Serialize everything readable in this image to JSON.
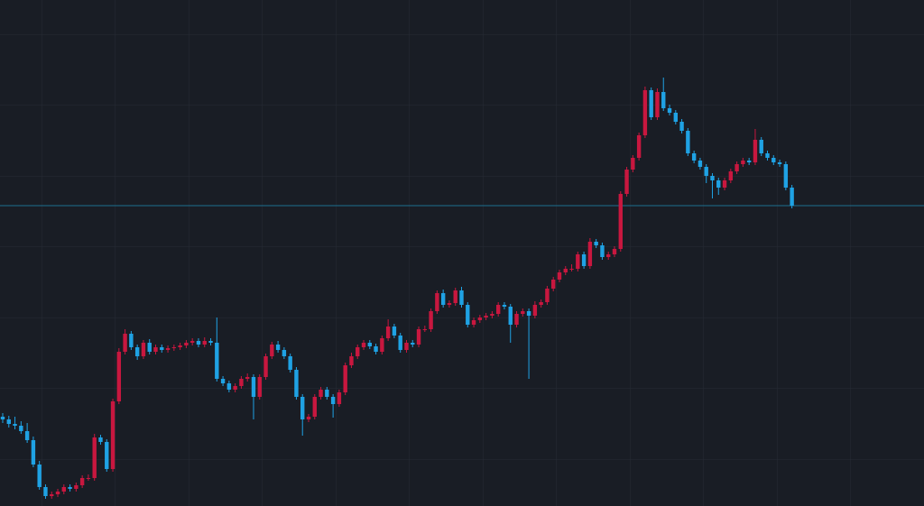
{
  "chart_data": {
    "type": "candlestick",
    "ylim": [
      0,
      561
    ],
    "up_color": "#c8173f",
    "down_color": "#1fa2e4",
    "last_price_line": true,
    "last_price_color": "#1d6f8f",
    "open": [
      99,
      96,
      91,
      89,
      83,
      73,
      46,
      21,
      11,
      13,
      16,
      21,
      19,
      23,
      31,
      31,
      76,
      71,
      41,
      116,
      171,
      191,
      176,
      166,
      181,
      171,
      176,
      173,
      175,
      176,
      178,
      181,
      183,
      179,
      183,
      181,
      141,
      136,
      129,
      133,
      141,
      143,
      121,
      143,
      166,
      179,
      173,
      166,
      151,
      121,
      96,
      99,
      121,
      129,
      121,
      113,
      126,
      156,
      166,
      176,
      181,
      177,
      171,
      186,
      199,
      189,
      173,
      181,
      179,
      196,
      196,
      216,
      236,
      223,
      225,
      239,
      223,
      201,
      206,
      209,
      211,
      213,
      223,
      221,
      201,
      213,
      216,
      211,
      223,
      226,
      241,
      251,
      259,
      263,
      263,
      279,
      266,
      293,
      289,
      276,
      279,
      285,
      346,
      373,
      386,
      411,
      461,
      431,
      459,
      441,
      436,
      426,
      416,
      391,
      383,
      376,
      366,
      361,
      353,
      361,
      371,
      379,
      383,
      381,
      406,
      391,
      386,
      381,
      379,
      353
    ],
    "high": [
      103,
      100,
      99,
      94,
      92,
      77,
      50,
      24,
      16,
      19,
      24,
      24,
      26,
      34,
      35,
      80,
      79,
      74,
      119,
      175,
      196,
      194,
      179,
      184,
      185,
      179,
      179,
      178,
      179,
      181,
      184,
      186,
      186,
      187,
      186,
      209,
      144,
      139,
      136,
      144,
      147,
      146,
      146,
      169,
      182,
      183,
      176,
      169,
      154,
      124,
      102,
      124,
      132,
      132,
      124,
      129,
      159,
      170,
      179,
      184,
      184,
      180,
      189,
      207,
      202,
      192,
      184,
      184,
      199,
      200,
      219,
      239,
      240,
      228,
      242,
      243,
      226,
      209,
      212,
      214,
      216,
      226,
      226,
      224,
      216,
      219,
      219,
      227,
      229,
      244,
      254,
      262,
      266,
      268,
      282,
      282,
      297,
      296,
      292,
      282,
      288,
      349,
      376,
      389,
      414,
      465,
      464,
      463,
      475,
      445,
      439,
      429,
      419,
      394,
      386,
      379,
      369,
      364,
      364,
      374,
      382,
      386,
      386,
      418,
      409,
      394,
      389,
      384,
      382,
      356
    ],
    "low": [
      92,
      87,
      85,
      80,
      70,
      43,
      18,
      8,
      8,
      10,
      13,
      16,
      16,
      20,
      28,
      28,
      68,
      38,
      38,
      113,
      168,
      173,
      162,
      163,
      168,
      168,
      170,
      170,
      172,
      173,
      175,
      178,
      176,
      176,
      178,
      138,
      133,
      126,
      126,
      130,
      138,
      96,
      118,
      140,
      163,
      170,
      163,
      148,
      118,
      78,
      93,
      96,
      118,
      118,
      98,
      110,
      123,
      153,
      163,
      173,
      174,
      168,
      168,
      183,
      186,
      170,
      170,
      176,
      176,
      193,
      193,
      213,
      220,
      220,
      222,
      220,
      198,
      198,
      203,
      206,
      208,
      210,
      218,
      181,
      198,
      210,
      141,
      208,
      220,
      223,
      238,
      248,
      256,
      260,
      260,
      263,
      263,
      286,
      273,
      273,
      276,
      282,
      343,
      370,
      383,
      408,
      428,
      428,
      438,
      433,
      423,
      413,
      388,
      380,
      373,
      358,
      341,
      345,
      350,
      358,
      368,
      376,
      378,
      378,
      388,
      383,
      378,
      376,
      350,
      330
    ],
    "close": [
      96,
      91,
      89,
      83,
      73,
      46,
      21,
      11,
      13,
      16,
      21,
      19,
      23,
      31,
      31,
      76,
      71,
      41,
      116,
      171,
      191,
      176,
      166,
      181,
      171,
      176,
      173,
      175,
      176,
      178,
      181,
      183,
      179,
      183,
      181,
      141,
      136,
      129,
      133,
      141,
      143,
      121,
      143,
      166,
      179,
      173,
      166,
      151,
      121,
      96,
      99,
      121,
      129,
      121,
      113,
      126,
      156,
      166,
      176,
      181,
      177,
      171,
      186,
      199,
      189,
      173,
      181,
      179,
      196,
      196,
      216,
      236,
      223,
      225,
      239,
      223,
      201,
      206,
      209,
      211,
      213,
      223,
      221,
      201,
      213,
      216,
      211,
      223,
      226,
      241,
      251,
      259,
      263,
      263,
      279,
      266,
      293,
      289,
      276,
      279,
      285,
      346,
      373,
      386,
      411,
      461,
      431,
      459,
      441,
      436,
      426,
      416,
      391,
      383,
      376,
      366,
      361,
      353,
      361,
      371,
      379,
      383,
      381,
      406,
      391,
      386,
      381,
      379,
      353,
      333
    ]
  }
}
